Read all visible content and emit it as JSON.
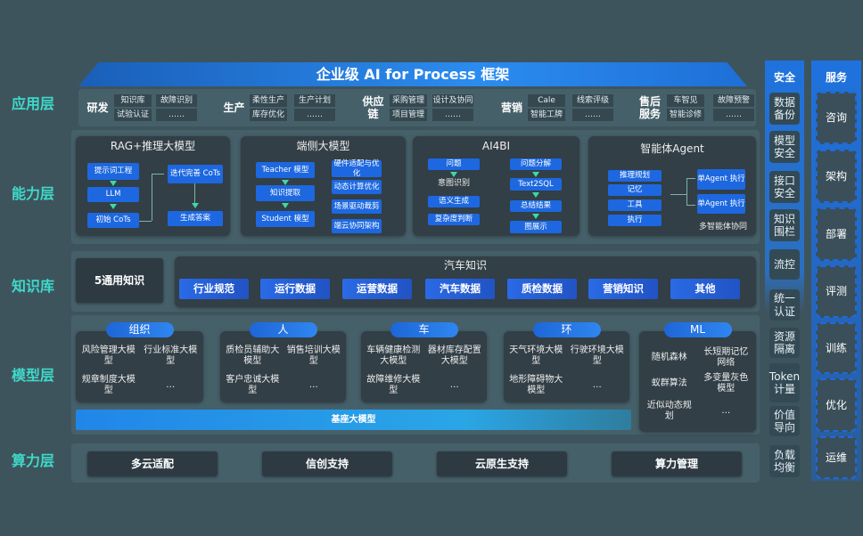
{
  "title": "企业级 AI for Process 框架",
  "layers": {
    "app": "应用层",
    "ability": "能力层",
    "knowledge": "知识库",
    "model": "模型层",
    "compute": "算力层"
  },
  "app_groups": [
    {
      "name": "研发",
      "items": [
        "知识库",
        "故障识别",
        "试验认证",
        "……"
      ]
    },
    {
      "name": "生产",
      "items": [
        "柔性生产",
        "生产计划",
        "库存优化",
        "……"
      ]
    },
    {
      "name": "供应链",
      "items": [
        "采购管理",
        "设计及协同",
        "项目管理",
        "……"
      ]
    },
    {
      "name": "营销",
      "items": [
        "Cale",
        "线索评级",
        "智能工牌",
        "……"
      ]
    },
    {
      "name": "售后服务",
      "items": [
        "车智见",
        "故障预警",
        "智能诊修",
        "……"
      ]
    }
  ],
  "ability": {
    "rag": {
      "title": "RAG+推理大模型",
      "items": [
        "提示词工程",
        "LLM",
        "初始 CoTs",
        "迭代完善 CoTs",
        "生成答案"
      ]
    },
    "edge": {
      "title": "端侧大模型",
      "items": [
        "Teacher 模型",
        "知识提取",
        "Student 模型",
        "硬件适配与优化",
        "动态计算优化",
        "场景驱动裁剪",
        "端云协同架构"
      ]
    },
    "ai4bi": {
      "title": "AI4BI",
      "items": [
        "问题",
        "意图识别",
        "语义生成",
        "复杂度判断",
        "问题分解",
        "Text2SQL",
        "总结结果",
        "图展示"
      ]
    },
    "agent": {
      "title": "智能体Agent",
      "items": [
        "推理规划",
        "记忆",
        "工具",
        "执行",
        "单Agent 执行",
        "单Agent 执行"
      ],
      "footer": "多智能体协同"
    }
  },
  "knowledge": {
    "general": "5通用知识",
    "auto_title": "汽车知识",
    "items": [
      "行业规范",
      "运行数据",
      "运营数据",
      "汽车数据",
      "质检数据",
      "营销知识",
      "其他"
    ]
  },
  "models": [
    {
      "header": "组织",
      "items": [
        "风险管理大模型",
        "行业标准大模型",
        "规章制度大模型",
        "…"
      ]
    },
    {
      "header": "人",
      "items": [
        "质检员辅助大模型",
        "销售培训大模型",
        "客户忠诚大模型",
        "…"
      ]
    },
    {
      "header": "车",
      "items": [
        "车辆健康检测大模型",
        "器材库存配置大模型",
        "故障维修大模型",
        "…"
      ]
    },
    {
      "header": "环",
      "items": [
        "天气环境大模型",
        "行驶环境大模型",
        "地形障碍物大模型",
        "…"
      ]
    },
    {
      "header": "ML",
      "items": [
        "随机森林",
        "长短期记忆网络",
        "蚁群算法",
        "多变量灰色模型",
        "近似动态规划",
        "…"
      ]
    }
  ],
  "base_model": "基座大模型",
  "compute": [
    "多云适配",
    "信创支持",
    "云原生支持",
    "算力管理"
  ],
  "security": {
    "title": "安全",
    "items": [
      "数据备份",
      "模型安全",
      "接口安全",
      "知识围栏",
      "流控",
      "统一认证",
      "资源隔离",
      "Token计量",
      "价值导向",
      "负载均衡"
    ]
  },
  "service": {
    "title": "服务",
    "items": [
      "咨询",
      "架构",
      "部署",
      "评测",
      "训练",
      "优化",
      "运维"
    ]
  },
  "colors": {
    "background": "#3e545d",
    "accent": "#1d68e0",
    "layer_label": "#3fd9c9"
  }
}
